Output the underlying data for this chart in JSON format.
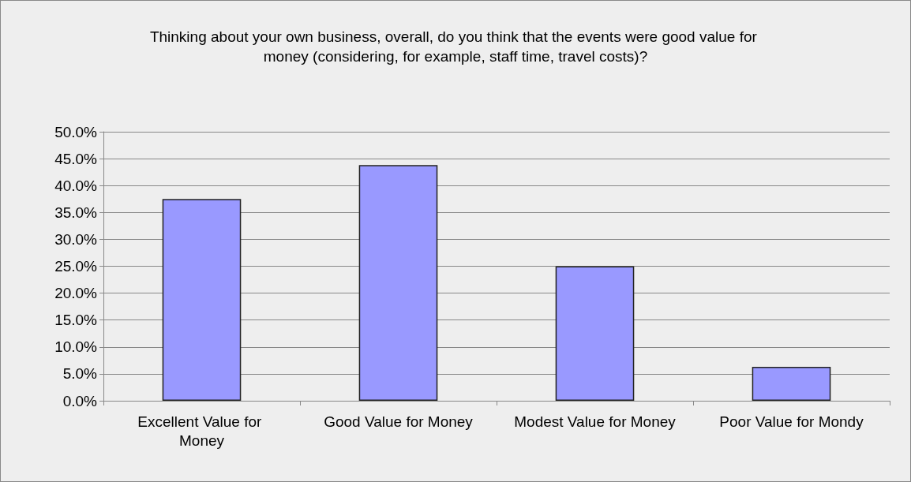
{
  "chart_data": {
    "type": "bar",
    "title": "Thinking about your own business, overall, do you think that the events were good value for money (considering, for example, staff time, travel costs)?",
    "categories": [
      "Excellent Value for Money",
      "Good Value for Money",
      "Modest Value for Money",
      "Poor Value for Mondy"
    ],
    "values": [
      37.5,
      43.8,
      25,
      6.3
    ],
    "color": "#9999ff",
    "ylim": [
      0,
      50
    ],
    "yticks": [
      {
        "value": 0,
        "label": "0.0%"
      },
      {
        "value": 5,
        "label": "5.0%"
      },
      {
        "value": 10,
        "label": "10.0%"
      },
      {
        "value": 15,
        "label": "15.0%"
      },
      {
        "value": 20,
        "label": "20.0%"
      },
      {
        "value": 25,
        "label": "25.0%"
      },
      {
        "value": 30,
        "label": "30.0%"
      },
      {
        "value": 35,
        "label": "35.0%"
      },
      {
        "value": 40,
        "label": "40.0%"
      },
      {
        "value": 45,
        "label": "45.0%"
      },
      {
        "value": 50,
        "label": "50.0%"
      }
    ],
    "grid": "y"
  }
}
